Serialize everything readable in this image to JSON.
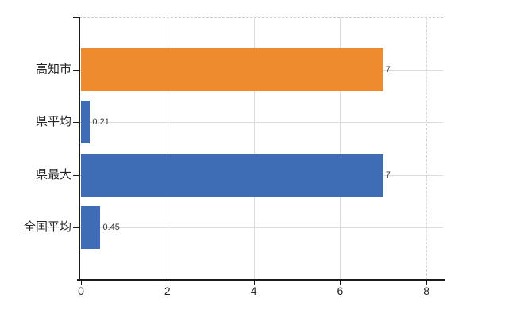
{
  "chart_data": {
    "type": "bar",
    "orientation": "horizontal",
    "title": "",
    "xlabel": "",
    "ylabel": "",
    "categories": [
      "高知市",
      "県平均",
      "県最大",
      "全国平均"
    ],
    "values": [
      7,
      0.21,
      7,
      0.45
    ],
    "value_labels": [
      "7",
      "0.21",
      "7",
      "0.45"
    ],
    "bar_colors": [
      "#ef8b2f",
      "#3e6db5",
      "#3e6db5",
      "#3e6db5"
    ],
    "xticks": [
      0,
      2,
      4,
      6,
      8
    ],
    "xtick_labels": [
      "0",
      "2",
      "4",
      "6",
      "8"
    ],
    "xlim": [
      0,
      8.45
    ],
    "grid": true,
    "legend": false
  },
  "colors": {
    "orange_bar": "#ef8b2f",
    "blue_bar": "#3e6db5",
    "gridline": "#d9ded9",
    "axis": "#1a1a1a",
    "category_text": "#262626",
    "value_text": "#3a3a3a",
    "background": "#ffffff"
  }
}
